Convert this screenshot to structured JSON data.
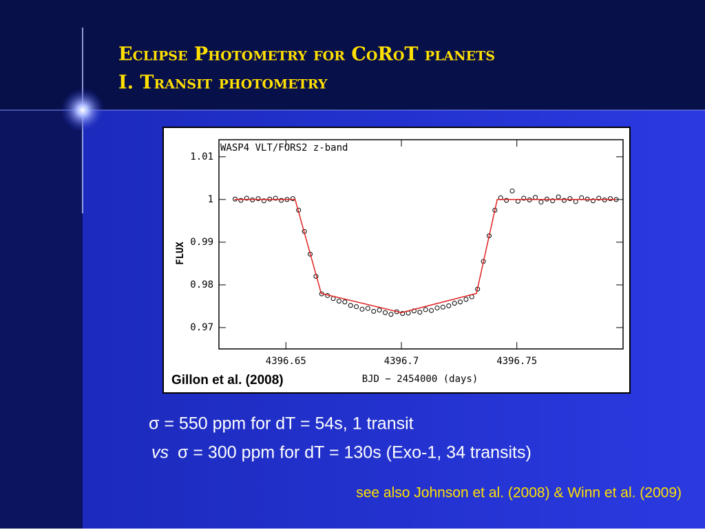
{
  "slide": {
    "title_lines": [
      "Eclipse Photometry for CoRoT planets",
      "I. Transit photometry"
    ],
    "note_1": "σ = 550 ppm for dT = 54s, 1 transit",
    "note_2_prefix": "vs",
    "note_2": "σ = 300 ppm for dT = 130s (Exo-1, 34 transits)",
    "reference": "see also Johnson et al. (2008) & Winn et al. (2009)"
  },
  "chart_data": {
    "type": "scatter",
    "title": "WASP4 VLT/FORS2 z-band",
    "xlabel": "BJD − 2454000 (days)",
    "ylabel": "FLUX",
    "annotation": "Gillon et al. (2008)",
    "xlim": [
      4396.621,
      4396.796
    ],
    "xticks": [
      4396.65,
      4396.7,
      4396.75
    ],
    "ylim": [
      0.965,
      1.014
    ],
    "yticks": [
      0.97,
      0.98,
      0.99,
      1,
      1.01
    ],
    "series": [
      {
        "mode": "markers",
        "color": "#000000",
        "x": [
          4396.628,
          4396.6305,
          4396.633,
          4396.6355,
          4396.638,
          4396.6405,
          4396.643,
          4396.6455,
          4396.648,
          4396.6505,
          4396.653,
          4396.6555,
          4396.658,
          4396.6605,
          4396.663,
          4396.6655,
          4396.668,
          4396.6705,
          4396.673,
          4396.6755,
          4396.678,
          4396.6805,
          4396.683,
          4396.6855,
          4396.688,
          4396.6905,
          4396.693,
          4396.6955,
          4396.698,
          4396.7005,
          4396.703,
          4396.7055,
          4396.708,
          4396.7105,
          4396.713,
          4396.7155,
          4396.718,
          4396.7205,
          4396.723,
          4396.7255,
          4396.728,
          4396.7305,
          4396.733,
          4396.7355,
          4396.738,
          4396.7405,
          4396.743,
          4396.7455,
          4396.748,
          4396.7505,
          4396.753,
          4396.7555,
          4396.758,
          4396.7605,
          4396.763,
          4396.7655,
          4396.768,
          4396.7705,
          4396.773,
          4396.7755,
          4396.778,
          4396.7805,
          4396.783,
          4396.7855,
          4396.788,
          4396.7905,
          4396.793
        ],
        "values": [
          1.0001,
          0.9998,
          1.0003,
          0.9999,
          1.0002,
          0.9997,
          1.0001,
          1.0003,
          0.9998,
          1.0,
          1.0002,
          0.9975,
          0.9925,
          0.9872,
          0.982,
          0.9779,
          0.9775,
          0.9768,
          0.9762,
          0.976,
          0.9752,
          0.9749,
          0.9743,
          0.9745,
          0.9738,
          0.9741,
          0.9735,
          0.9731,
          0.9737,
          0.9733,
          0.9734,
          0.9739,
          0.9736,
          0.9742,
          0.974,
          0.9746,
          0.9748,
          0.9751,
          0.9757,
          0.976,
          0.9766,
          0.9772,
          0.979,
          0.9855,
          0.9915,
          0.9975,
          1.0004,
          0.9998,
          1.002,
          0.9996,
          1.0003,
          0.9999,
          1.0005,
          0.9994,
          1.0001,
          0.9997,
          1.0006,
          0.9998,
          1.0002,
          0.9995,
          1.0004,
          1.0001,
          0.9997,
          1.0003,
          0.9999,
          1.0002,
          1.0
        ]
      },
      {
        "mode": "line",
        "color": "#e02020",
        "x": [
          4396.6277,
          4396.654,
          4396.6653,
          4396.7,
          4396.7325,
          4396.7415,
          4396.793
        ],
        "values": [
          1,
          1,
          0.978,
          0.9735,
          0.978,
          1,
          1
        ]
      }
    ]
  }
}
